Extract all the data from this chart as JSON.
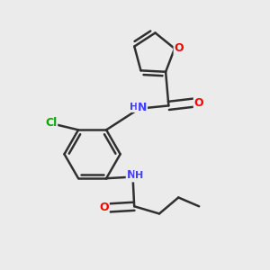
{
  "background_color": "#ebebeb",
  "bond_color": "#303030",
  "atom_colors": {
    "O": "#ff0000",
    "N": "#4040ff",
    "Cl": "#00aa00",
    "C": "#303030"
  },
  "figsize": [
    3.0,
    3.0
  ],
  "dpi": 100
}
